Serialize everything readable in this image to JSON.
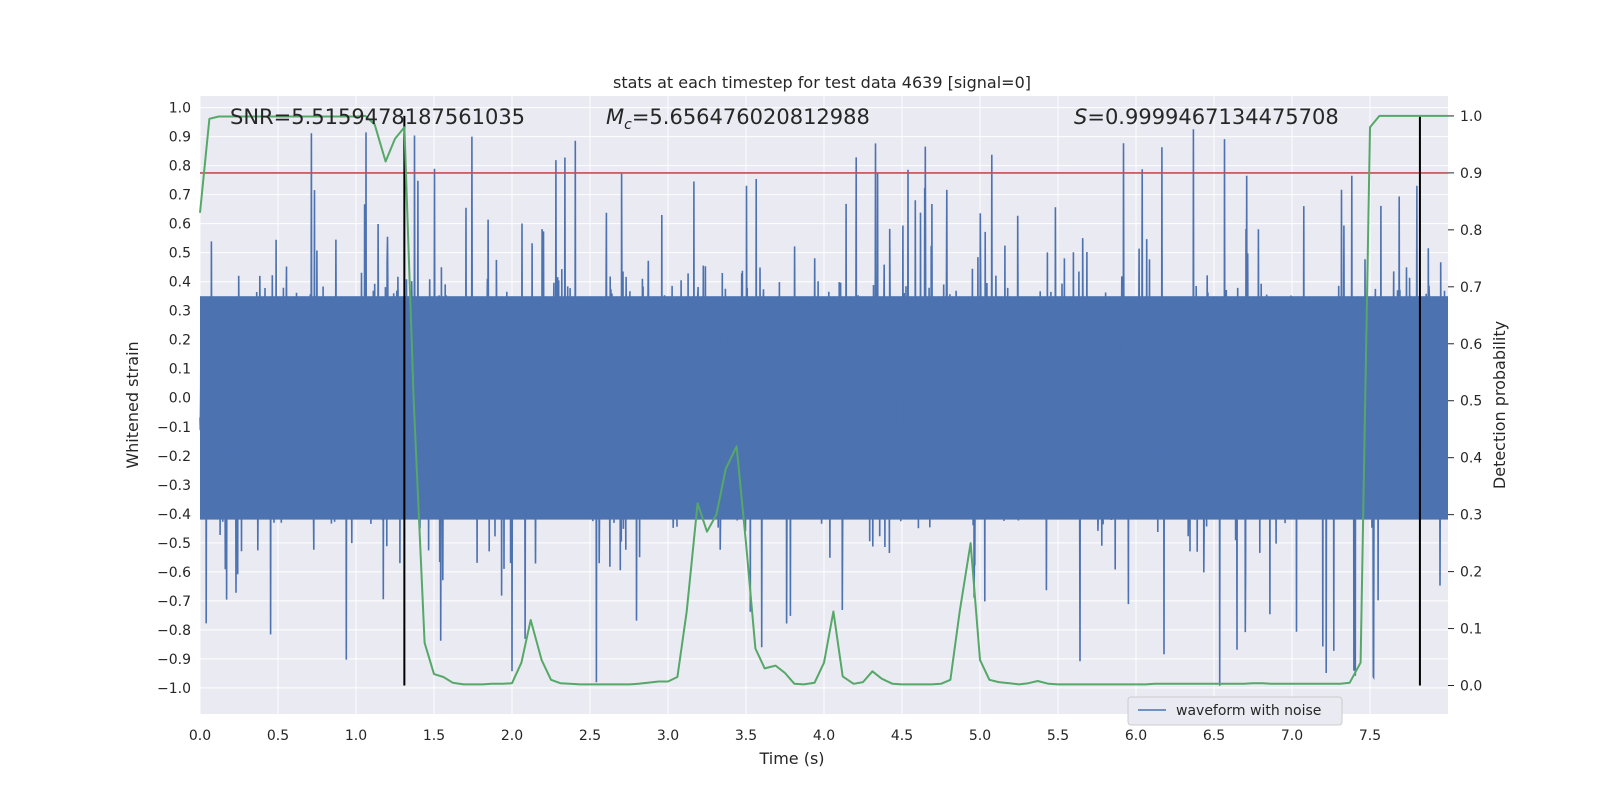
{
  "chart_data": {
    "type": "line",
    "title": "stats at each timestep for test data 4639 [signal=0]",
    "xlabel": "Time (s)",
    "ylabel": "Whitened strain",
    "y2label": "Detection probability",
    "xlim": [
      0.0,
      8.0
    ],
    "ylim": [
      -1.09,
      1.04
    ],
    "y2lim": [
      -0.05,
      1.035
    ],
    "x_ticks": [
      "0.0",
      "0.5",
      "1.0",
      "1.5",
      "2.0",
      "2.5",
      "3.0",
      "3.5",
      "4.0",
      "4.5",
      "5.0",
      "5.5",
      "6.0",
      "6.5",
      "7.0",
      "7.5"
    ],
    "y_ticks": [
      "1.0",
      "0.9",
      "0.8",
      "0.7",
      "0.6",
      "0.5",
      "0.4",
      "0.3",
      "0.2",
      "0.1",
      "0.0",
      "−0.1",
      "−0.2",
      "−0.3",
      "−0.4",
      "−0.5",
      "−0.6",
      "−0.7",
      "−0.8",
      "−0.9",
      "−1.0"
    ],
    "y2_ticks": [
      "1.0",
      "0.9",
      "0.8",
      "0.7",
      "0.6",
      "0.5",
      "0.4",
      "0.3",
      "0.2",
      "0.1",
      "0.0"
    ],
    "stats": {
      "snr_label": "SNR=5.5159478187561035",
      "mc_symbol": "M",
      "mc_subscript": "c",
      "mc_value": "=5.656476020812988",
      "s_symbol": "S",
      "s_value": "=0.9999467134475708"
    },
    "threshold": {
      "probability": 0.9,
      "color": "#c44e52"
    },
    "vertical_markers": {
      "x": [
        1.31,
        7.82
      ],
      "color": "#000000"
    },
    "series": [
      {
        "name": "waveform with noise",
        "color": "#4c72b0",
        "description": "whitened strain noise, dense band approx ±0.35 with spikes up to 0.93 and down to −1.0"
      },
      {
        "name": "detection probability",
        "color": "#55a868",
        "x": [
          0.0,
          0.06,
          0.12,
          0.19,
          0.25,
          0.31,
          0.37,
          0.44,
          0.5,
          0.56,
          0.62,
          0.69,
          0.75,
          0.81,
          0.87,
          0.94,
          1.0,
          1.06,
          1.12,
          1.19,
          1.25,
          1.31,
          1.37,
          1.44,
          1.5,
          1.56,
          1.62,
          1.69,
          1.75,
          1.81,
          1.87,
          1.94,
          2.0,
          2.06,
          2.12,
          2.19,
          2.25,
          2.31,
          2.37,
          2.44,
          2.5,
          2.56,
          2.62,
          2.69,
          2.75,
          2.81,
          2.87,
          2.94,
          3.0,
          3.06,
          3.12,
          3.19,
          3.25,
          3.31,
          3.37,
          3.44,
          3.5,
          3.56,
          3.62,
          3.69,
          3.75,
          3.81,
          3.87,
          3.94,
          4.0,
          4.06,
          4.12,
          4.19,
          4.25,
          4.31,
          4.37,
          4.44,
          4.5,
          4.56,
          4.62,
          4.69,
          4.75,
          4.81,
          4.87,
          4.94,
          5.0,
          5.06,
          5.12,
          5.19,
          5.25,
          5.31,
          5.37,
          5.44,
          5.5,
          5.56,
          5.62,
          5.69,
          5.75,
          5.81,
          5.87,
          5.94,
          6.0,
          6.06,
          6.12,
          6.19,
          6.25,
          6.31,
          6.37,
          6.44,
          6.5,
          6.56,
          6.62,
          6.69,
          6.75,
          6.81,
          6.87,
          6.94,
          7.0,
          7.06,
          7.12,
          7.19,
          7.25,
          7.31,
          7.37,
          7.44,
          7.5,
          7.56,
          7.62,
          7.69,
          7.75,
          7.81,
          7.87,
          7.94,
          8.0
        ],
        "values": [
          0.83,
          0.995,
          0.999,
          0.999,
          0.999,
          0.999,
          0.999,
          0.999,
          0.999,
          0.999,
          0.999,
          0.999,
          0.999,
          0.999,
          0.999,
          0.999,
          0.999,
          1.0,
          0.985,
          0.92,
          0.96,
          0.98,
          0.5,
          0.075,
          0.02,
          0.015,
          0.005,
          0.002,
          0.002,
          0.002,
          0.003,
          0.003,
          0.004,
          0.04,
          0.115,
          0.045,
          0.01,
          0.004,
          0.003,
          0.002,
          0.002,
          0.002,
          0.002,
          0.002,
          0.002,
          0.003,
          0.005,
          0.007,
          0.007,
          0.015,
          0.13,
          0.32,
          0.27,
          0.3,
          0.38,
          0.42,
          0.25,
          0.065,
          0.03,
          0.035,
          0.022,
          0.003,
          0.002,
          0.005,
          0.04,
          0.13,
          0.016,
          0.003,
          0.006,
          0.025,
          0.012,
          0.003,
          0.002,
          0.002,
          0.002,
          0.002,
          0.003,
          0.01,
          0.13,
          0.25,
          0.045,
          0.01,
          0.006,
          0.004,
          0.002,
          0.004,
          0.008,
          0.003,
          0.002,
          0.002,
          0.002,
          0.002,
          0.002,
          0.002,
          0.002,
          0.002,
          0.002,
          0.002,
          0.003,
          0.003,
          0.003,
          0.003,
          0.003,
          0.003,
          0.003,
          0.003,
          0.003,
          0.003,
          0.004,
          0.004,
          0.003,
          0.003,
          0.003,
          0.003,
          0.003,
          0.003,
          0.003,
          0.003,
          0.005,
          0.04,
          0.98,
          1.0,
          1.0,
          1.0,
          1.0,
          1.0,
          1.0,
          1.0,
          1.0
        ]
      }
    ],
    "legend": {
      "label": "waveform with noise",
      "placement": "lower-right"
    }
  }
}
